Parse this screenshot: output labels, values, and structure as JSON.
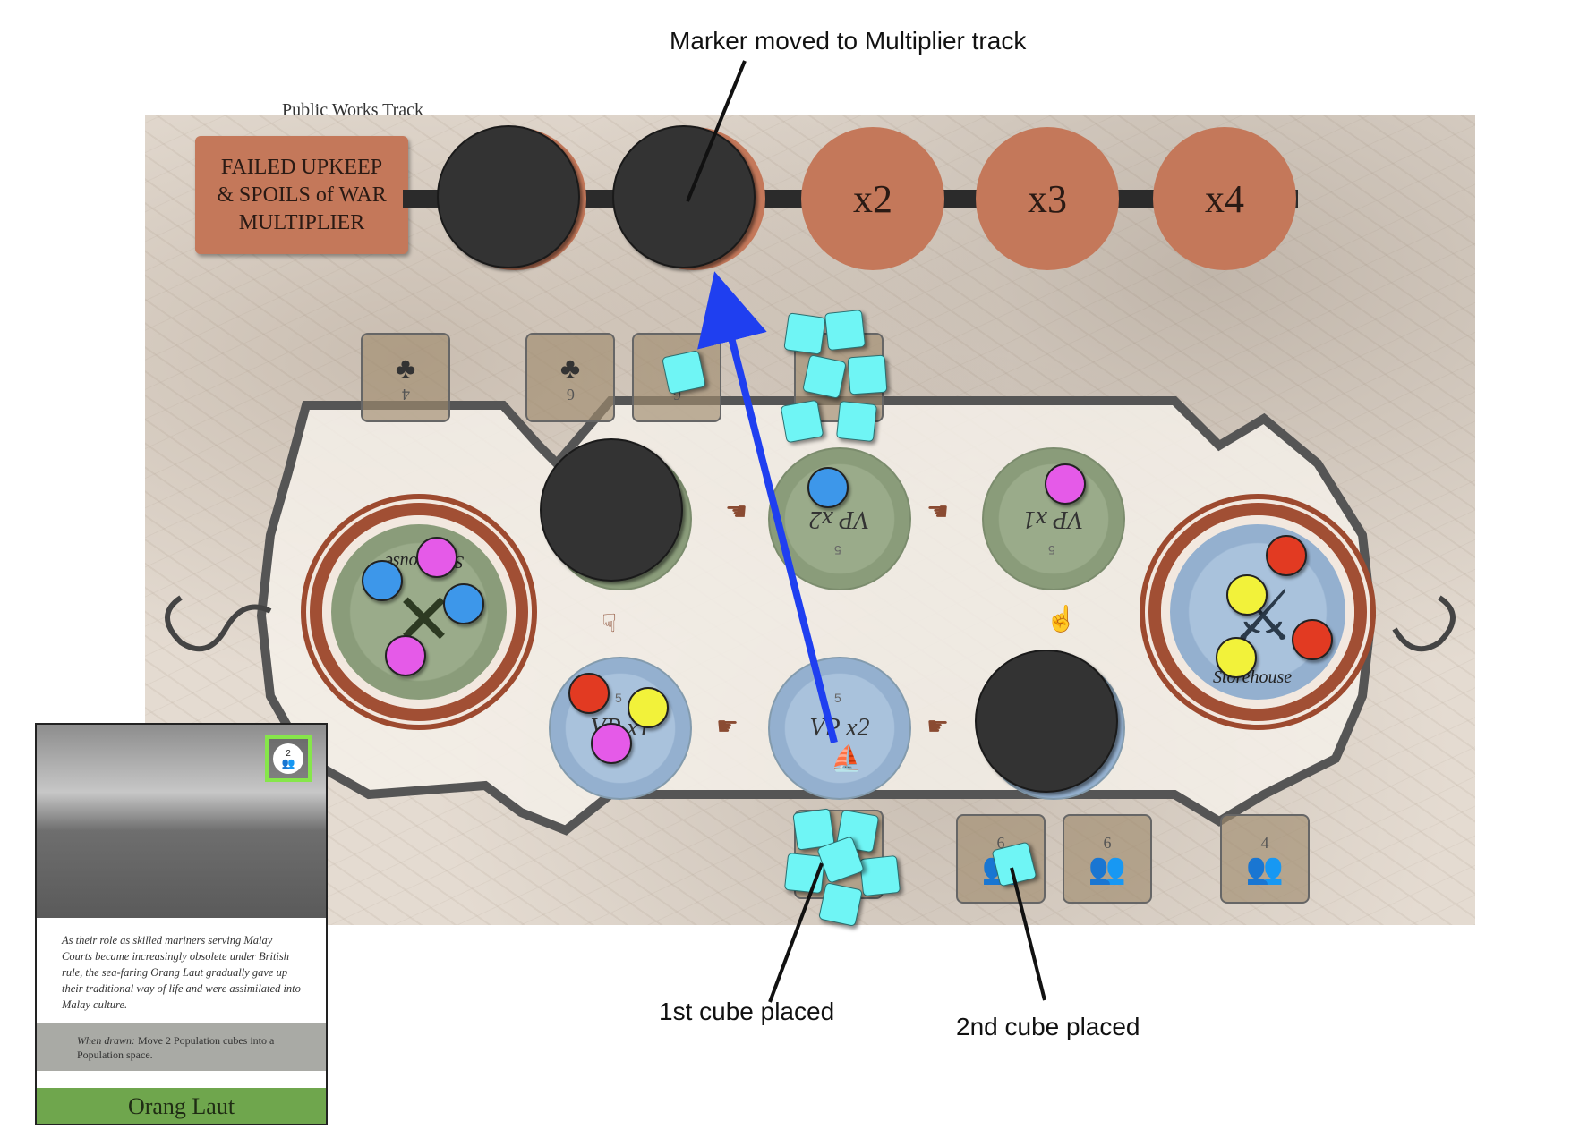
{
  "annotations": {
    "marker_moved": "Marker moved to Multiplier track",
    "first_cube": "1st cube placed",
    "second_cube": "2nd cube placed"
  },
  "board": {
    "track_title": "Public Works Track",
    "multiplier_box": [
      "FAILED UPKEEP",
      "& SPOILS of WAR",
      "MULTIPLIER"
    ],
    "multiplier_track": [
      "x2",
      "x3",
      "x4"
    ],
    "spaces": {
      "top_mid_label": "VP x2",
      "top_mid_num": "5",
      "top_right_label": "VP x1",
      "top_right_num": "5",
      "bottom_left_label": "VP x1",
      "bottom_left_num": "5",
      "bottom_mid_label": "VP x2",
      "bottom_mid_num": "5",
      "left_big_label": "Storehouse",
      "right_big_label": "Storehouse"
    },
    "small_spaces_top": [
      "4",
      "6",
      "6"
    ],
    "small_spaces_bottom": [
      "6",
      "6",
      "4"
    ]
  },
  "card": {
    "badge_number": "2",
    "flavor_text": "As their role as skilled mariners serving Malay Courts became increasingly obsolete under British rule, the sea-faring Orang Laut gradually gave up their traditional way of life and were assimilated into Malay culture.",
    "when_drawn_label": "When drawn:",
    "when_drawn_text": " Move 2 Population cubes into a Population space.",
    "name": "Orang Laut"
  },
  "colors": {
    "terracotta": "#c4785a",
    "cube": "#6ff5f5",
    "arrow": "#1f3ff0",
    "card_green": "#6fa64d",
    "badge_border": "#86e64a"
  }
}
